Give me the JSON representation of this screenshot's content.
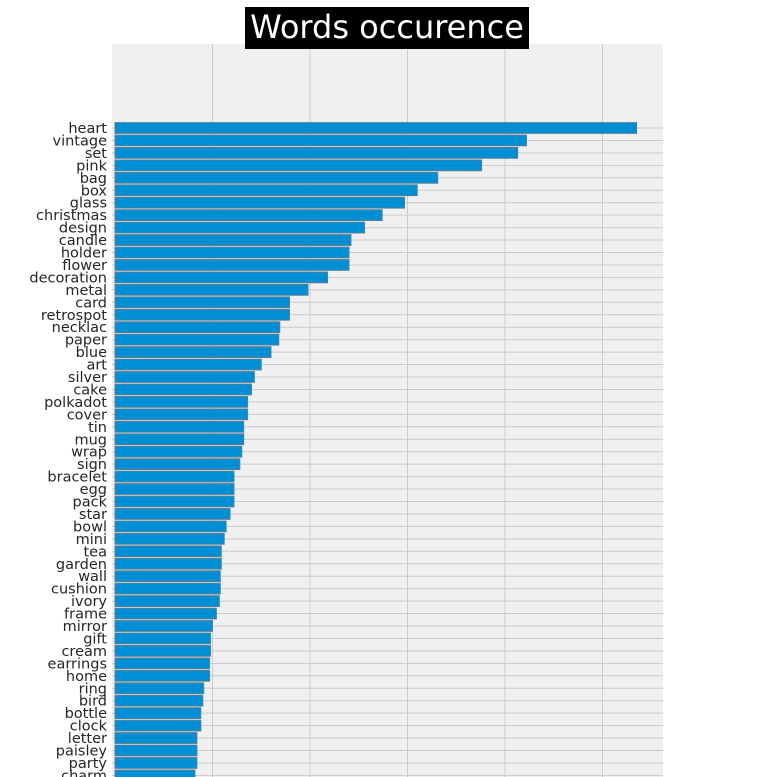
{
  "chart_data": {
    "type": "bar",
    "orientation": "horizontal",
    "title": "Words occurence",
    "xlabel": "",
    "ylabel": "",
    "xlim": [
      0,
      560
    ],
    "grid": true,
    "bar_color": "#008fd5",
    "background_color": "#f0f0f0",
    "categories": [
      "heart",
      "vintage",
      "set",
      "pink",
      "bag",
      "box",
      "glass",
      "christmas",
      "design",
      "candle",
      "holder",
      "flower",
      "decoration",
      "metal",
      "card",
      "retrospot",
      "necklac",
      "paper",
      "blue",
      "art",
      "silver",
      "cake",
      "polkadot",
      "cover",
      "tin",
      "mug",
      "wrap",
      "sign",
      "bracelet",
      "egg",
      "pack",
      "star",
      "bowl",
      "mini",
      "tea",
      "garden",
      "wall",
      "cushion",
      "ivory",
      "frame",
      "mirror",
      "gift",
      "cream",
      "earrings",
      "home",
      "ring",
      "bird",
      "bottle",
      "clock",
      "letter",
      "paisley",
      "party",
      "charm"
    ],
    "values": [
      535,
      422,
      413,
      376,
      331,
      310,
      297,
      274,
      256,
      242,
      240,
      240,
      218,
      198,
      179,
      179,
      169,
      168,
      160,
      150,
      143,
      140,
      136,
      136,
      132,
      132,
      130,
      128,
      122,
      122,
      122,
      118,
      114,
      112,
      109,
      109,
      108,
      108,
      107,
      104,
      100,
      98,
      98,
      97,
      97,
      91,
      90,
      88,
      88,
      84,
      84,
      84,
      82
    ]
  }
}
